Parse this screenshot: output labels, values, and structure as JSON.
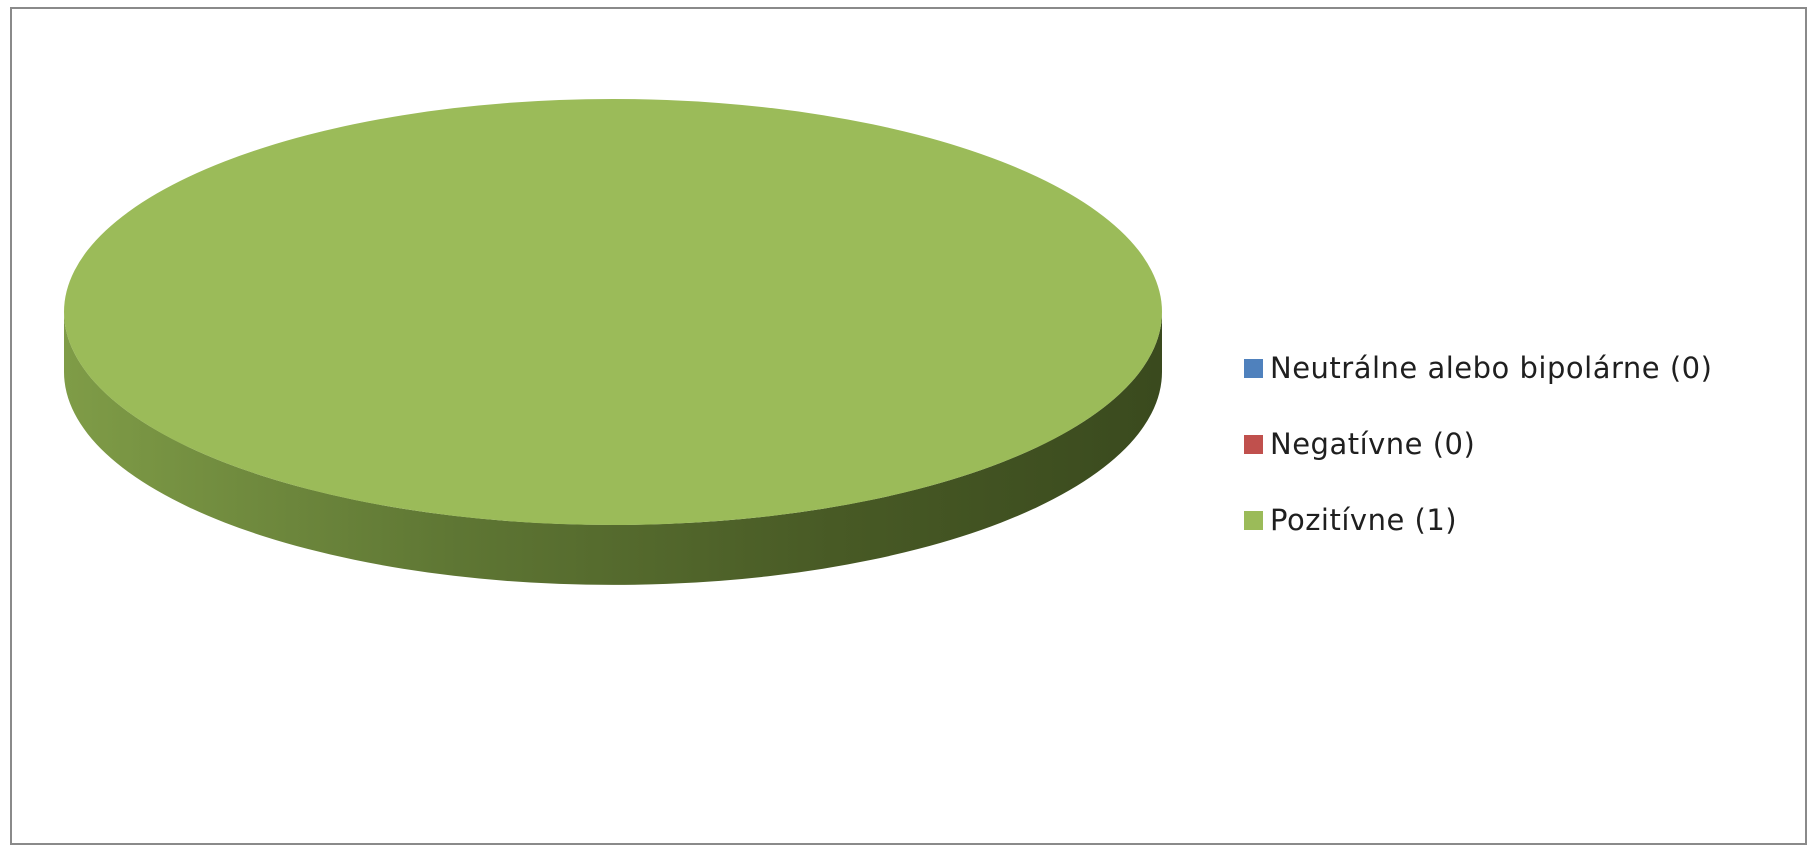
{
  "chart_data": {
    "type": "pie",
    "style": "3d",
    "labels": [
      "Neutrálne alebo bipolárne",
      "Negatívne",
      "Pozitívne"
    ],
    "values": [
      0,
      0,
      1
    ],
    "colors": [
      "#4f81bd",
      "#c0504d",
      "#9bbb59"
    ],
    "legend": {
      "position": "right",
      "entries": [
        {
          "label": "Neutrálne alebo bipolárne (0)",
          "color": "#4f81bd"
        },
        {
          "label": "Negatívne (0)",
          "color": "#c0504d"
        },
        {
          "label": "Pozitívne (1)",
          "color": "#9bbb59"
        }
      ]
    }
  }
}
